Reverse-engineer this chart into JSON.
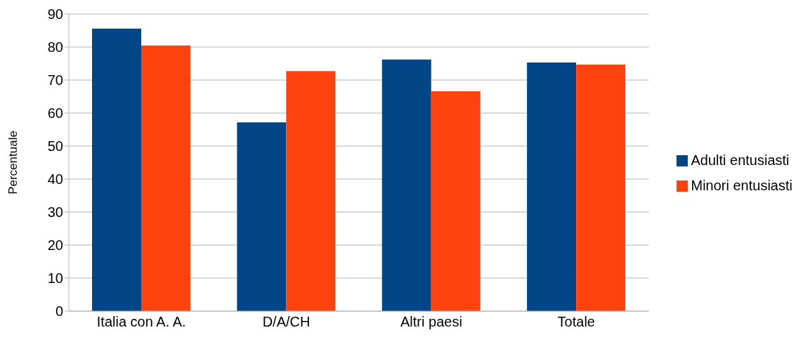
{
  "chart_data": {
    "type": "bar",
    "ylabel": "Percentuale",
    "categories": [
      "Italia con A. A.",
      "D/A/CH",
      "Altri paesi",
      "Totale"
    ],
    "series": [
      {
        "name": "Adulti entusiasti",
        "color": "#004586",
        "values": [
          85.6,
          57.2,
          76.2,
          75.3
        ]
      },
      {
        "name": "Minori entusiasti",
        "color": "#ff420e",
        "values": [
          80.5,
          72.7,
          66.6,
          74.7
        ]
      }
    ],
    "ylim": [
      0,
      90
    ],
    "yticks": [
      0,
      10,
      20,
      30,
      40,
      50,
      60,
      70,
      80,
      90
    ],
    "grid": "y",
    "legend": "right"
  }
}
